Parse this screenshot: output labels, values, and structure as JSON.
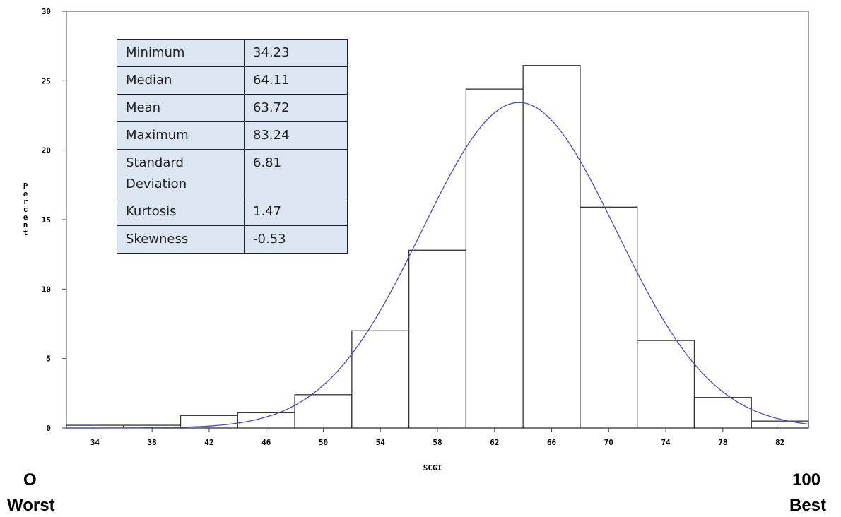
{
  "chart_data": {
    "type": "bar",
    "title": "",
    "xlabel": "SCGI",
    "ylabel": "Percent",
    "xlim": [
      32,
      84
    ],
    "ylim": [
      0,
      30
    ],
    "x_ticks": [
      34,
      38,
      42,
      46,
      50,
      54,
      58,
      62,
      66,
      70,
      74,
      78,
      82
    ],
    "y_ticks": [
      0,
      5,
      10,
      15,
      20,
      25,
      30
    ],
    "bin_width": 4,
    "bins": [
      {
        "x0": 32,
        "x1": 36,
        "percent": 0.2
      },
      {
        "x0": 36,
        "x1": 40,
        "percent": 0.2
      },
      {
        "x0": 40,
        "x1": 44,
        "percent": 0.9
      },
      {
        "x0": 44,
        "x1": 48,
        "percent": 1.1
      },
      {
        "x0": 48,
        "x1": 52,
        "percent": 2.4
      },
      {
        "x0": 52,
        "x1": 56,
        "percent": 7.0
      },
      {
        "x0": 56,
        "x1": 60,
        "percent": 12.8
      },
      {
        "x0": 60,
        "x1": 64,
        "percent": 24.4
      },
      {
        "x0": 64,
        "x1": 68,
        "percent": 26.1
      },
      {
        "x0": 68,
        "x1": 72,
        "percent": 15.9
      },
      {
        "x0": 72,
        "x1": 76,
        "percent": 6.3
      },
      {
        "x0": 76,
        "x1": 80,
        "percent": 2.2
      },
      {
        "x0": 80,
        "x1": 84,
        "percent": 0.5
      }
    ],
    "normal_curve": {
      "mean": 63.72,
      "sd": 6.81,
      "color": "#4a4ad0"
    },
    "bar_fill": "#ffffff",
    "bar_stroke": "#333333"
  },
  "stats_table": [
    {
      "label": "Minimum",
      "value": "34.23"
    },
    {
      "label": "Median",
      "value": "64.11"
    },
    {
      "label": "Mean",
      "value": "63.72"
    },
    {
      "label": "Maximum",
      "value": "83.24"
    },
    {
      "label": "Standard Deviation",
      "value": "6.81"
    },
    {
      "label": "Kurtosis",
      "value": "1.47"
    },
    {
      "label": "Skewness",
      "value": "-0.53"
    }
  ],
  "scale_labels": {
    "left_value": "O",
    "left_text": "Worst",
    "right_value": "100",
    "right_text": "Best"
  }
}
